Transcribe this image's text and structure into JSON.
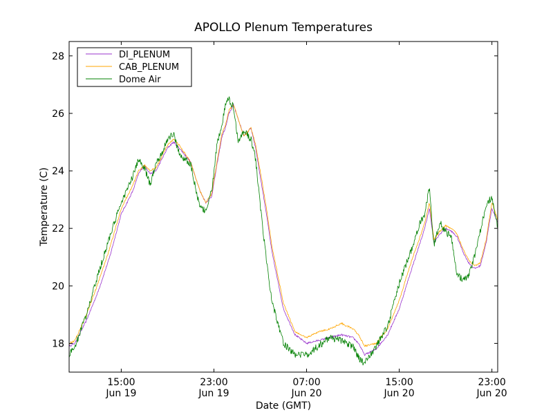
{
  "chart_data": {
    "type": "line",
    "title": "APOLLO Plenum Temperatures",
    "xlabel": "Date (GMT)",
    "ylabel": "Temperature (C)",
    "xlim": [
      10.5,
      47.5
    ],
    "ylim": [
      17,
      28.5
    ],
    "yticks": [
      18,
      20,
      22,
      24,
      26,
      28
    ],
    "xticks": [
      {
        "x": 15,
        "line1": "15:00",
        "line2": "Jun 19"
      },
      {
        "x": 23,
        "line1": "23:00",
        "line2": "Jun 19"
      },
      {
        "x": 31,
        "line1": "07:00",
        "line2": "Jun 20"
      },
      {
        "x": 39,
        "line1": "15:00",
        "line2": "Jun 20"
      },
      {
        "x": 47,
        "line1": "23:00",
        "line2": "Jun 20"
      }
    ],
    "x_units": "hours since 2000 Jun 19 00:00 GMT",
    "legend_position": "top-left",
    "series": [
      {
        "name": "DI_PLENUM",
        "color": "#9933cc",
        "noise": 0.03,
        "x": [
          10.5,
          11.0,
          12.0,
          13.0,
          14.0,
          15.0,
          16.0,
          16.5,
          17.0,
          17.5,
          18.0,
          18.5,
          19.0,
          19.5,
          20.0,
          21.0,
          21.8,
          22.3,
          22.8,
          23.3,
          23.7,
          24.0,
          24.3,
          24.7,
          25.1,
          25.6,
          26.2,
          26.6,
          27.0,
          27.5,
          28.0,
          29.0,
          30.0,
          31.0,
          32.0,
          33.0,
          34.0,
          35.0,
          35.5,
          36.0,
          37.0,
          38.0,
          39.0,
          40.0,
          40.8,
          41.2,
          41.6,
          42.0,
          42.5,
          43.0,
          43.5,
          44.0,
          44.6,
          45.0,
          45.5,
          46.0,
          46.5,
          47.0,
          47.5
        ],
        "values": [
          17.9,
          18.0,
          18.8,
          19.8,
          21.0,
          22.5,
          23.3,
          23.9,
          24.2,
          23.9,
          24.0,
          24.4,
          24.8,
          25.0,
          24.8,
          24.3,
          23.3,
          22.9,
          23.1,
          24.3,
          25.2,
          25.5,
          26.0,
          26.3,
          25.8,
          25.2,
          25.5,
          24.8,
          23.8,
          22.6,
          21.2,
          19.2,
          18.3,
          18.0,
          18.1,
          18.2,
          18.3,
          18.2,
          18.0,
          17.6,
          17.8,
          18.3,
          19.2,
          20.5,
          21.5,
          22.0,
          22.7,
          21.5,
          21.8,
          22.0,
          21.9,
          21.7,
          21.1,
          20.8,
          20.6,
          20.7,
          21.5,
          22.7,
          22.2
        ]
      },
      {
        "name": "CAB_PLENUM",
        "color": "#ffa500",
        "noise": 0.03,
        "x": [
          10.5,
          11.0,
          12.0,
          13.0,
          14.0,
          15.0,
          16.0,
          16.5,
          17.0,
          17.5,
          18.0,
          18.5,
          19.0,
          19.5,
          20.0,
          21.0,
          21.8,
          22.3,
          22.8,
          23.3,
          23.7,
          24.0,
          24.3,
          24.7,
          25.1,
          25.6,
          26.2,
          26.6,
          27.0,
          27.5,
          28.0,
          29.0,
          30.0,
          31.0,
          32.0,
          33.0,
          34.0,
          35.0,
          35.5,
          36.0,
          37.0,
          38.0,
          39.0,
          40.0,
          40.8,
          41.2,
          41.6,
          42.0,
          42.5,
          43.0,
          43.5,
          44.0,
          44.6,
          45.0,
          45.5,
          46.0,
          46.5,
          47.0,
          47.5
        ],
        "values": [
          18.0,
          18.1,
          19.0,
          20.1,
          21.3,
          22.7,
          23.5,
          24.0,
          24.2,
          24.0,
          24.1,
          24.5,
          24.9,
          25.1,
          24.9,
          24.3,
          23.3,
          22.9,
          23.2,
          24.4,
          25.3,
          25.6,
          26.1,
          26.3,
          25.8,
          25.2,
          25.5,
          24.9,
          24.0,
          22.8,
          21.4,
          19.4,
          18.4,
          18.2,
          18.4,
          18.5,
          18.7,
          18.5,
          18.3,
          17.9,
          18.0,
          18.5,
          19.5,
          20.8,
          21.7,
          22.2,
          22.9,
          21.6,
          21.9,
          22.1,
          22.0,
          21.8,
          21.2,
          20.9,
          20.7,
          20.8,
          21.6,
          22.9,
          22.3
        ]
      },
      {
        "name": "Dome Air",
        "color": "#008000",
        "noise": 0.12,
        "x": [
          10.5,
          11.0,
          12.0,
          13.0,
          14.0,
          15.0,
          16.0,
          16.5,
          17.0,
          17.5,
          18.0,
          18.5,
          19.0,
          19.5,
          20.0,
          21.0,
          21.8,
          22.3,
          22.8,
          23.3,
          23.7,
          24.0,
          24.3,
          24.7,
          25.1,
          25.6,
          26.2,
          26.6,
          27.0,
          27.5,
          28.0,
          29.0,
          30.0,
          31.0,
          32.0,
          33.0,
          34.0,
          35.0,
          35.5,
          36.0,
          37.0,
          38.0,
          39.0,
          40.0,
          40.8,
          41.2,
          41.6,
          42.0,
          42.5,
          43.0,
          43.5,
          44.0,
          44.6,
          45.0,
          45.5,
          46.0,
          46.5,
          47.0,
          47.5
        ],
        "values": [
          17.6,
          17.9,
          19.0,
          20.4,
          21.7,
          22.9,
          23.8,
          24.4,
          24.1,
          23.5,
          24.3,
          24.6,
          25.1,
          25.3,
          24.6,
          24.2,
          22.7,
          22.6,
          23.3,
          25.0,
          25.6,
          26.3,
          26.5,
          26.2,
          25.0,
          25.4,
          25.1,
          24.4,
          22.8,
          21.0,
          19.5,
          18.0,
          17.6,
          17.6,
          17.9,
          18.2,
          18.1,
          17.9,
          17.5,
          17.3,
          17.9,
          18.6,
          20.1,
          21.2,
          22.2,
          22.5,
          23.4,
          21.4,
          22.2,
          21.9,
          21.7,
          20.4,
          20.2,
          20.4,
          21.0,
          21.9,
          22.8,
          23.1,
          22.0
        ]
      }
    ]
  }
}
